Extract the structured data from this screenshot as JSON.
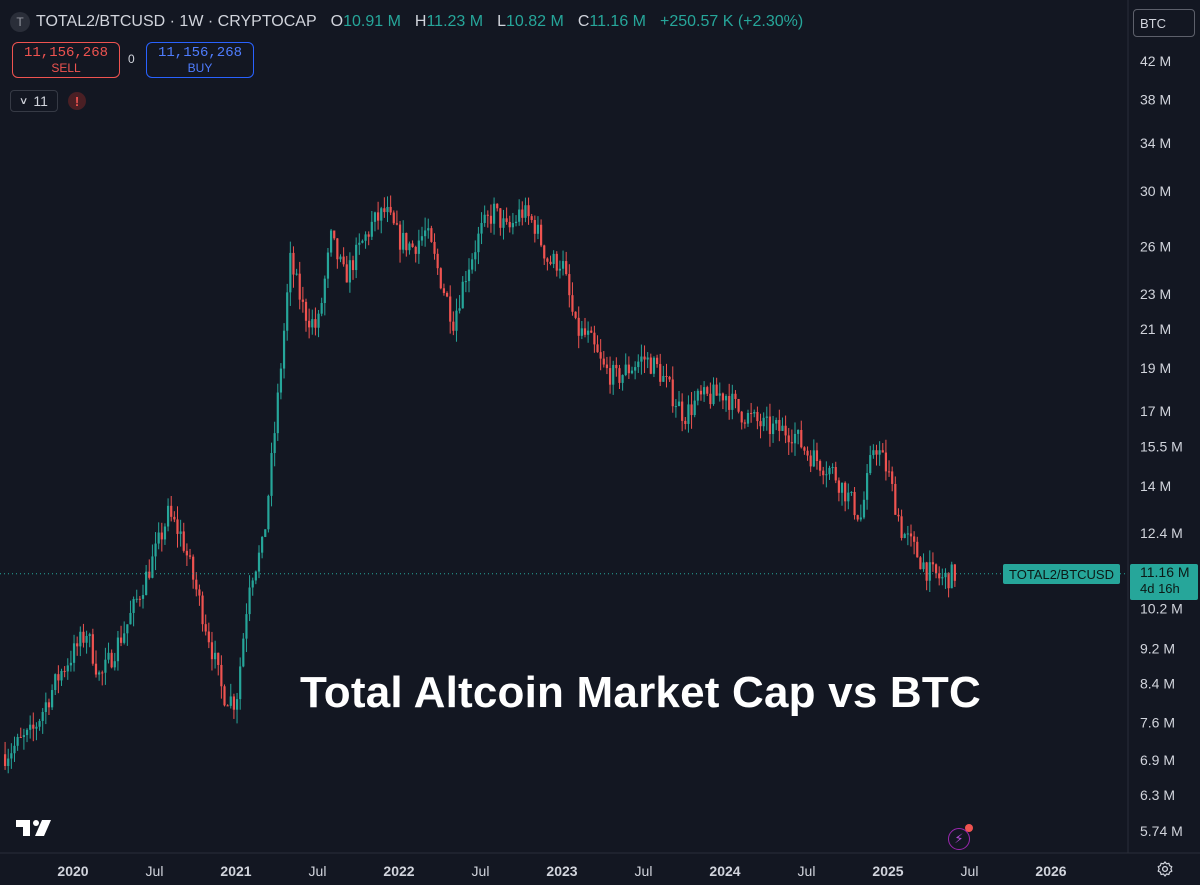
{
  "header": {
    "symbol_logo": "T",
    "title": "TOTAL2/BTCUSD · 1W · CRYPTOCAP",
    "ohlc": {
      "o_label": "O",
      "o": "10.91 M",
      "h_label": "H",
      "h": "11.23 M",
      "l_label": "L",
      "l": "10.82 M",
      "c_label": "C",
      "c": "11.16 M"
    },
    "change": "+250.57 K (+2.30%)"
  },
  "trading": {
    "sell_price": "11,156,268",
    "sell_label": "SELL",
    "spread": "0",
    "buy_price": "11,156,268",
    "buy_label": "BUY"
  },
  "indicators": {
    "count": "11",
    "warning_icon": "!"
  },
  "currency": "BTC",
  "watermark_text": "Total Altcoin Market Cap vs BTC",
  "price_tag": {
    "series_label": "TOTAL2/BTCUSD",
    "price": "11.16 M",
    "countdown": "4d 16h"
  },
  "icons": {
    "logo": "tradingview-logo-icon",
    "flash": "flash-icon",
    "settings": "gear-icon",
    "chevron": "chevron-down-icon"
  },
  "colors": {
    "background": "#131722",
    "up": "#26a69a",
    "down": "#ef5350",
    "text": "#d1d4dc"
  },
  "chart_data": {
    "type": "candlestick",
    "scale": "log",
    "interval": "1W",
    "y_ticks": [
      "42 M",
      "38 M",
      "34 M",
      "30 M",
      "26 M",
      "23 M",
      "21 M",
      "19 M",
      "17 M",
      "15.5 M",
      "14 M",
      "12.4 M",
      "10.2 M",
      "9.2 M",
      "8.4 M",
      "7.6 M",
      "6.9 M",
      "6.3 M",
      "5.74 M"
    ],
    "y_tick_values": [
      42,
      38,
      34,
      30,
      26,
      23,
      21,
      19,
      17,
      15.5,
      14,
      12.4,
      10.2,
      9.2,
      8.4,
      7.6,
      6.9,
      6.3,
      5.74
    ],
    "x_ticks": [
      "2020",
      "Jul",
      "2021",
      "Jul",
      "2022",
      "Jul",
      "2023",
      "Jul",
      "2024",
      "Jul",
      "2025",
      "Jul",
      "2026"
    ],
    "x_tick_values": [
      "2020-01",
      "2020-07",
      "2021-01",
      "2021-07",
      "2022-01",
      "2022-07",
      "2023-01",
      "2023-07",
      "2024-01",
      "2024-07",
      "2025-01",
      "2025-07",
      "2026-01"
    ],
    "x_tick_year": [
      true,
      false,
      true,
      false,
      true,
      false,
      true,
      false,
      true,
      false,
      true,
      false,
      true
    ],
    "last_price": 11.16,
    "series": [
      {
        "name": "TOTAL2/BTCUSD",
        "anchors": [
          [
            "2019-08",
            7.0
          ],
          [
            "2019-10",
            7.4
          ],
          [
            "2019-12",
            8.6
          ],
          [
            "2020-02",
            9.6
          ],
          [
            "2020-03",
            8.5
          ],
          [
            "2020-05",
            9.8
          ],
          [
            "2020-07",
            11.7
          ],
          [
            "2020-08",
            13.0
          ],
          [
            "2020-09",
            12.3
          ],
          [
            "2020-11",
            9.5
          ],
          [
            "2020-12",
            8.2
          ],
          [
            "2021-01",
            8.0
          ],
          [
            "2021-02",
            11.0
          ],
          [
            "2021-03",
            12.0
          ],
          [
            "2021-04",
            17.0
          ],
          [
            "2021-05",
            25.0
          ],
          [
            "2021-06",
            22.0
          ],
          [
            "2021-07",
            21.0
          ],
          [
            "2021-08",
            26.5
          ],
          [
            "2021-09",
            24.0
          ],
          [
            "2021-11",
            27.5
          ],
          [
            "2021-12",
            28.5
          ],
          [
            "2022-01",
            26.5
          ],
          [
            "2022-02",
            26.0
          ],
          [
            "2022-03",
            27.0
          ],
          [
            "2022-05",
            21.5
          ],
          [
            "2022-06",
            24.5
          ],
          [
            "2022-07",
            27.0
          ],
          [
            "2022-08",
            28.5
          ],
          [
            "2022-09",
            27.0
          ],
          [
            "2022-10",
            28.5
          ],
          [
            "2022-11",
            27.5
          ],
          [
            "2022-12",
            25.0
          ],
          [
            "2023-01",
            25.0
          ],
          [
            "2023-02",
            21.0
          ],
          [
            "2023-03",
            20.5
          ],
          [
            "2023-04",
            19.0
          ],
          [
            "2023-05",
            18.5
          ],
          [
            "2023-06",
            19.0
          ],
          [
            "2023-07",
            19.5
          ],
          [
            "2023-08",
            19.0
          ],
          [
            "2023-10",
            16.8
          ],
          [
            "2023-11",
            17.5
          ],
          [
            "2024-01",
            17.8
          ],
          [
            "2024-02",
            17.0
          ],
          [
            "2024-04",
            16.3
          ],
          [
            "2024-06",
            16.1
          ],
          [
            "2024-07",
            15.3
          ],
          [
            "2024-09",
            14.5
          ],
          [
            "2024-11",
            12.9
          ],
          [
            "2024-12",
            15.7
          ],
          [
            "2025-01",
            14.5
          ],
          [
            "2025-02",
            12.5
          ],
          [
            "2025-04",
            11.2
          ],
          [
            "2025-05",
            11.0
          ],
          [
            "2025-06",
            11.16
          ]
        ]
      }
    ]
  }
}
